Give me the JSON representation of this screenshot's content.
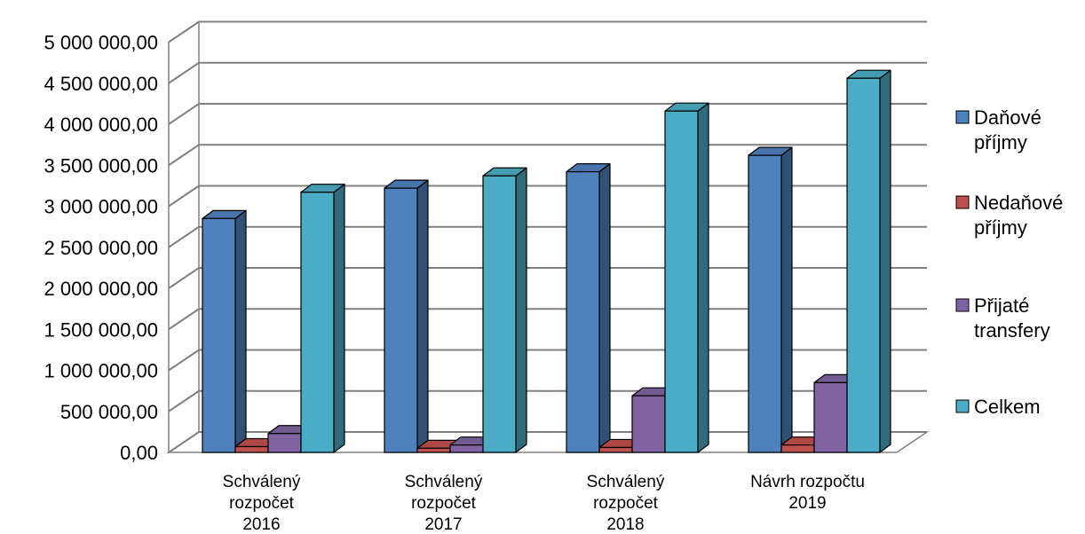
{
  "chart_data": {
    "type": "bar",
    "style": "3d-clustered-column",
    "title": "",
    "xlabel": "",
    "ylabel": "",
    "ylim": [
      0,
      5000000
    ],
    "y_step": 500000,
    "yticks": [
      "0,00",
      "500 000,00",
      "1 000 000,00",
      "1 500 000,00",
      "2 000 000,00",
      "2 500 000,00",
      "3 000 000,00",
      "3 500 000,00",
      "4 000 000,00",
      "4 500 000,00",
      "5 000 000,00"
    ],
    "grid": true,
    "legend_position": "right",
    "categories": [
      [
        "Schválený",
        "rozpočet",
        "2016"
      ],
      [
        "Schválený",
        "rozpočet",
        "2017"
      ],
      [
        "Schválený",
        "rozpočet",
        "2018"
      ],
      [
        "Návrh rozpočtu",
        "2019"
      ]
    ],
    "series": [
      {
        "name": [
          "Daňové",
          "příjmy"
        ],
        "color": "#4F81BD",
        "values": [
          2850000,
          3220000,
          3420000,
          3620000
        ]
      },
      {
        "name": [
          "Nedaňové",
          "příjmy"
        ],
        "color": "#C0504D",
        "values": [
          70000,
          50000,
          60000,
          90000
        ]
      },
      {
        "name": [
          "Přijaté",
          "transfery"
        ],
        "color": "#8064A2",
        "values": [
          230000,
          90000,
          690000,
          850000
        ]
      },
      {
        "name": [
          "Celkem"
        ],
        "color": "#4BACC6",
        "values": [
          3170000,
          3370000,
          4160000,
          4560000
        ]
      }
    ]
  }
}
